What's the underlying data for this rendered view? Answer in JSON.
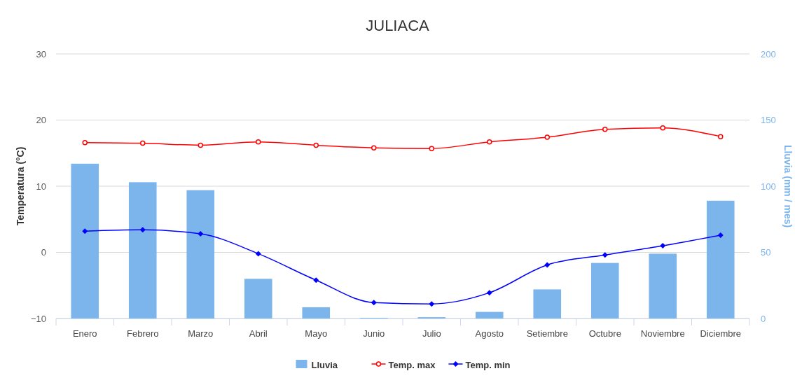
{
  "chart_data": {
    "type": "bar",
    "title": "JULIACA",
    "ylabel": "Temperatura (°C)",
    "y2label": "Lluvia (mm / mes)",
    "categories": [
      "Enero",
      "Febrero",
      "Marzo",
      "Abril",
      "Mayo",
      "Junio",
      "Julio",
      "Agosto",
      "Setiembre",
      "Octubre",
      "Noviembre",
      "Diciembre"
    ],
    "series": [
      {
        "name": "Lluvia",
        "axis": "y2",
        "color": "#7cb5ec",
        "values": [
          117,
          103,
          97,
          30,
          8.5,
          0.5,
          1,
          5,
          22,
          42,
          49,
          89
        ]
      },
      {
        "name": "Temp. max",
        "type": "line",
        "color": "#ff0000",
        "marker": "circle",
        "values": [
          16.6,
          16.5,
          16.2,
          16.7,
          16.2,
          15.8,
          15.7,
          16.7,
          17.4,
          18.6,
          18.8,
          17.5
        ]
      },
      {
        "name": "Temp. min",
        "type": "line",
        "color": "#0000ff",
        "marker": "diamond",
        "values": [
          3.2,
          3.4,
          2.8,
          -0.2,
          -4.2,
          -7.6,
          -7.8,
          -6.1,
          -1.9,
          -0.4,
          1.0,
          2.6
        ]
      }
    ],
    "ylim": [
      -10,
      30
    ],
    "yticks": [
      -10,
      0,
      10,
      20,
      30
    ],
    "y2lim": [
      0,
      200
    ],
    "y2ticks": [
      0,
      50,
      100,
      150,
      200
    ],
    "grid": "y",
    "legend": "bottom"
  }
}
